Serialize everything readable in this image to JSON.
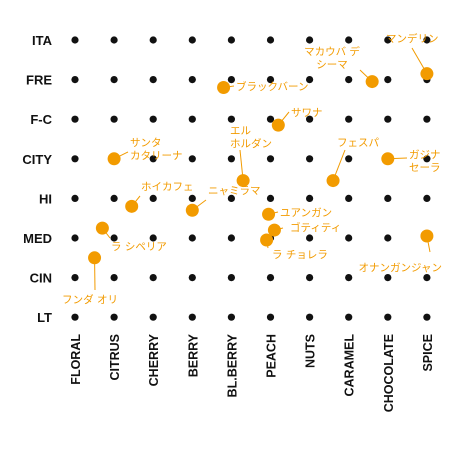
{
  "chart_data": {
    "type": "scatter",
    "title": "",
    "xlabel": "",
    "ylabel": "",
    "x_categories": [
      "FLORAL",
      "CITRUS",
      "CHERRY",
      "BERRY",
      "BL.BERRY",
      "PEACH",
      "NUTS",
      "CARAMEL",
      "CHOCOLATE",
      "SPICE"
    ],
    "y_categories": [
      "ITA",
      "FRE",
      "F-C",
      "CITY",
      "HI",
      "MED",
      "CIN",
      "LT"
    ],
    "grid_points": "every x_category × y_category intersection marked with a black dot",
    "colors": {
      "grid": "#111111",
      "highlight": "#f29b00"
    },
    "points": [
      {
        "label": [
          "マンデリン"
        ],
        "x": 9,
        "y": 0.85
      },
      {
        "label": [
          "マカウバ デ",
          "シーマ"
        ],
        "x": 7.6,
        "y": 1.05
      },
      {
        "label": [
          "ブラックバーン"
        ],
        "x": 3.8,
        "y": 1.2
      },
      {
        "label": [
          "サワナ"
        ],
        "x": 5.2,
        "y": 2.15
      },
      {
        "label": [
          "エル",
          "ホルダン"
        ],
        "x": 4.3,
        "y": 3.55
      },
      {
        "label": [
          "サンタ",
          "カタリーナ"
        ],
        "x": 1.0,
        "y": 3.0
      },
      {
        "label": [
          "フェスパ"
        ],
        "x": 6.6,
        "y": 3.55
      },
      {
        "label": [
          "ガジナ",
          "セーラ"
        ],
        "x": 8.0,
        "y": 3.0
      },
      {
        "label": [
          "ホイカフェ"
        ],
        "x": 1.45,
        "y": 4.2
      },
      {
        "label": [
          "ニャミラマ"
        ],
        "x": 3.0,
        "y": 4.3
      },
      {
        "label": [
          "ユアンガン"
        ],
        "x": 4.95,
        "y": 4.4
      },
      {
        "label": [
          "ゴティティ"
        ],
        "x": 5.1,
        "y": 4.8
      },
      {
        "label": [
          "ラ シペリア"
        ],
        "x": 0.7,
        "y": 4.75
      },
      {
        "label": [
          "ラ チョレラ"
        ],
        "x": 4.9,
        "y": 5.05
      },
      {
        "label": [
          "フンダ オリ"
        ],
        "x": 0.5,
        "y": 5.5
      },
      {
        "label": [
          "オナンガンジャン"
        ],
        "x": 9,
        "y": 4.95
      }
    ]
  }
}
